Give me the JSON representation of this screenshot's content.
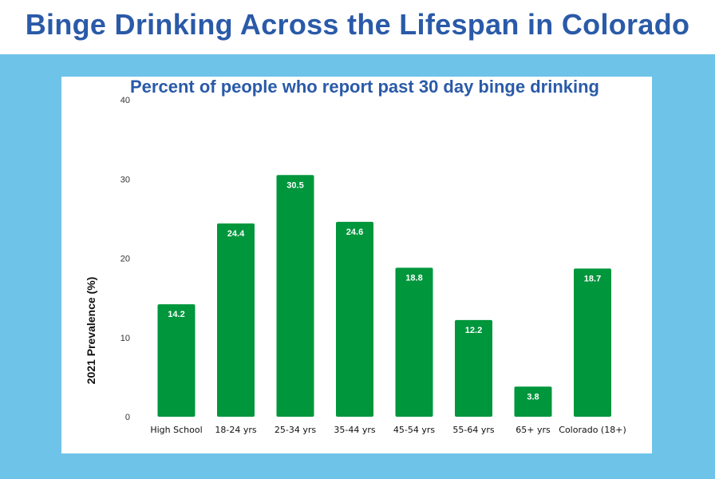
{
  "page": {
    "title": "Binge Drinking Across the Lifespan in Colorado"
  },
  "colors": {
    "background": "#6ec3e8",
    "title": "#2a5aa8",
    "bar": "#00963c",
    "bar_label": "#ffffff"
  },
  "chart_data": {
    "type": "bar",
    "title": "Percent of people who report past 30 day binge drinking",
    "xlabel": "",
    "ylabel": "2021 Prevalence (%)",
    "ylim": [
      0,
      40
    ],
    "yticks": [
      0,
      10,
      20,
      30,
      40
    ],
    "categories": [
      "High School",
      "18-24 yrs",
      "25-34 yrs",
      "35-44 yrs",
      "45-54 yrs",
      "55-64 yrs",
      "65+ yrs",
      "Colorado (18+)"
    ],
    "values": [
      14.2,
      24.4,
      30.5,
      24.6,
      18.8,
      12.2,
      3.8,
      18.7
    ],
    "data_labels": [
      "14.2",
      "24.4",
      "30.5",
      "24.6",
      "18.8",
      "12.2",
      "3.8",
      "18.7"
    ],
    "grid": false,
    "legend": "none"
  }
}
